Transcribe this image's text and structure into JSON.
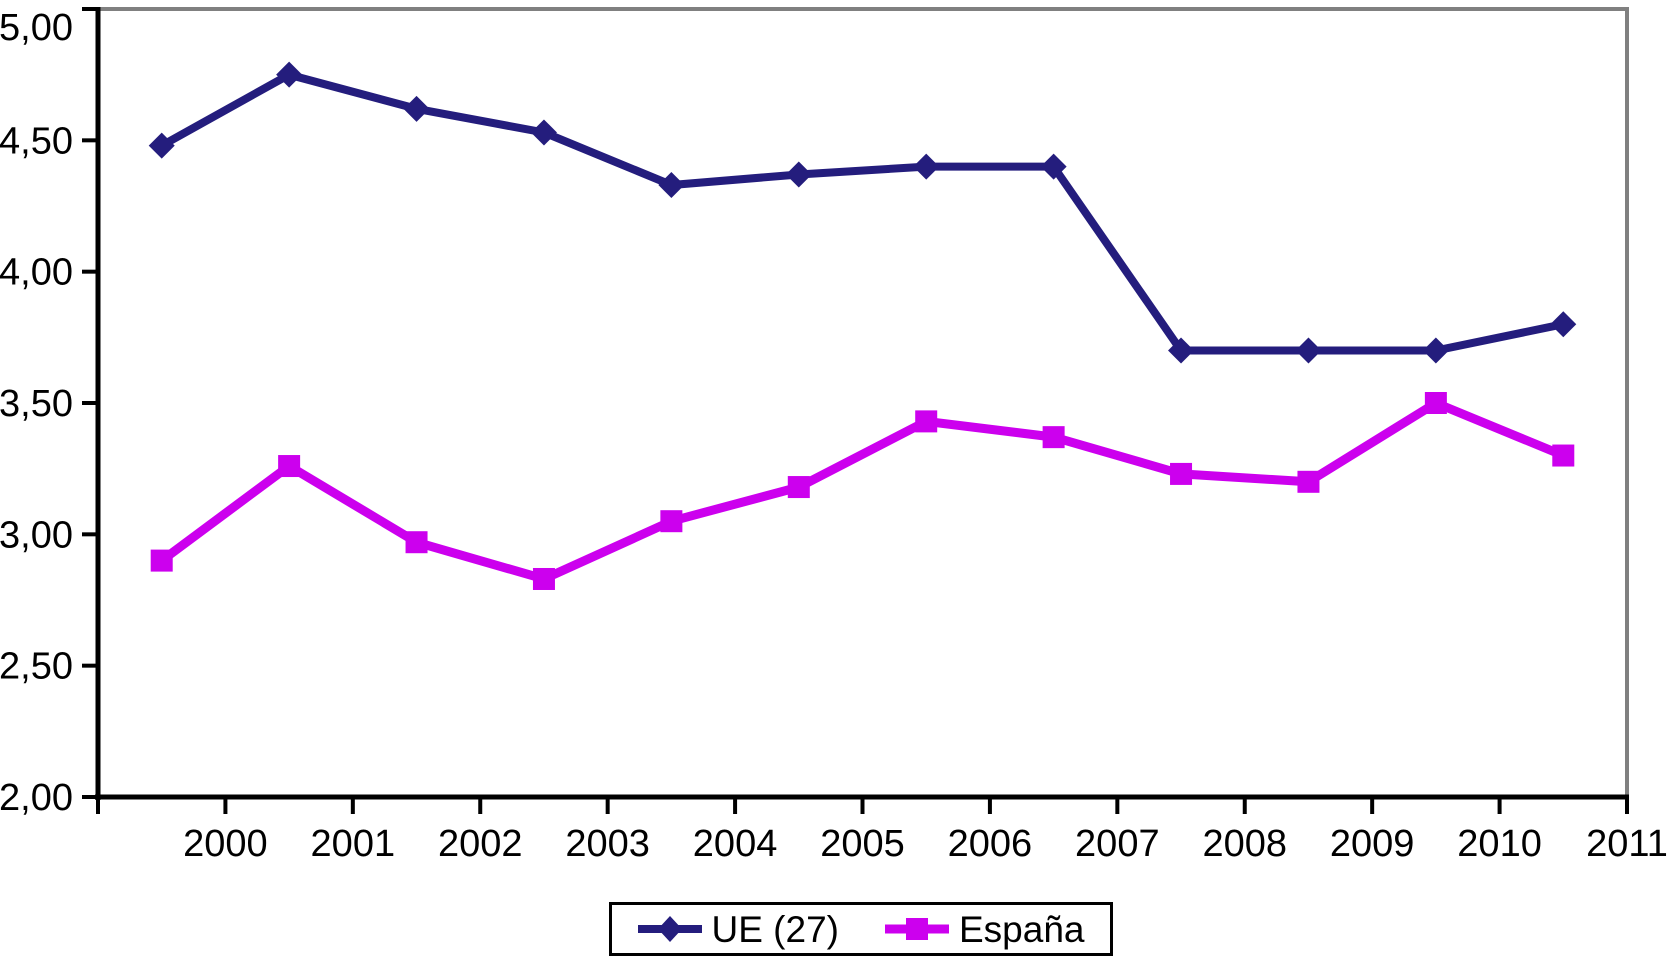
{
  "chart_data": {
    "type": "line",
    "title": "",
    "xlabel": "",
    "ylabel": "",
    "x_tick_labels": [
      "2000",
      "2001",
      "2002",
      "2003",
      "2004",
      "2005",
      "2006",
      "2007",
      "2008",
      "2009",
      "2010",
      "2011"
    ],
    "y_tick_labels": [
      "5,00",
      "4,50",
      "4,00",
      "3,50",
      "3,00",
      "2,50",
      "2,00"
    ],
    "ylim": [
      2.0,
      5.0
    ],
    "y_tick_step": 0.5,
    "grid": false,
    "legend_position": "bottom-center",
    "points_at_interval_midpoints": true,
    "axis_colors": {
      "left_bottom": "#000000",
      "top_right": "#808080"
    },
    "text_color": "#000000",
    "background_color": "#ffffff",
    "series": [
      {
        "name": "UE (27)",
        "color": "#241d7d",
        "marker": "diamond",
        "line_width": 8,
        "values": [
          4.48,
          4.75,
          4.62,
          4.53,
          4.33,
          4.37,
          4.4,
          4.4,
          3.7,
          3.7,
          3.7,
          3.8
        ]
      },
      {
        "name": "España",
        "color": "#cc00ee",
        "marker": "square",
        "line_width": 9,
        "values": [
          2.9,
          3.26,
          2.97,
          2.83,
          3.05,
          3.18,
          3.43,
          3.37,
          3.23,
          3.2,
          3.5,
          3.3
        ]
      }
    ]
  }
}
